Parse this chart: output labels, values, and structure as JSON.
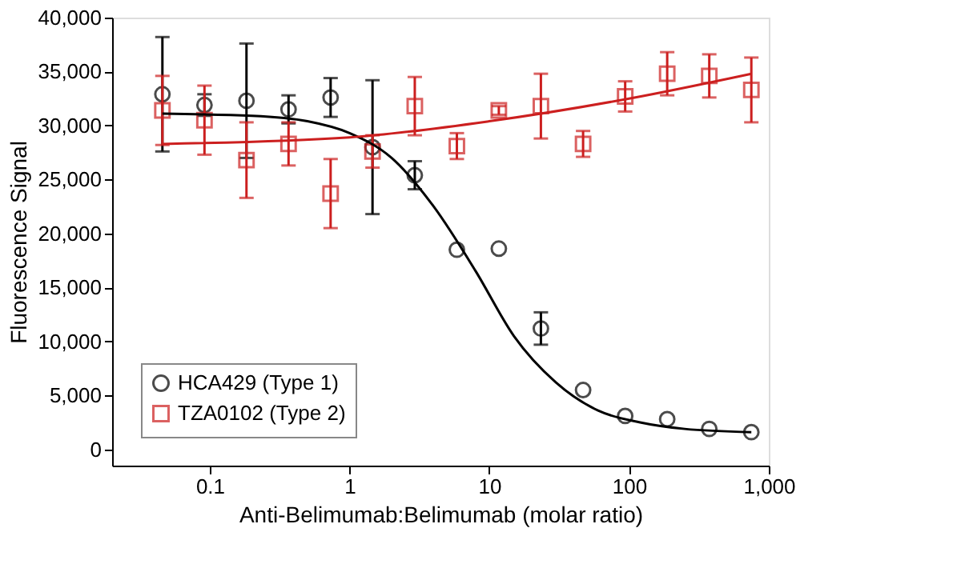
{
  "chart_data": {
    "type": "scatter",
    "xlabel": "Anti-Belimumab:Belimumab (molar ratio)",
    "ylabel": "Fluorescence Signal",
    "log": "x",
    "grid": false,
    "legend": "bottom left",
    "xlim": [
      0.02,
      1000
    ],
    "xticks": [
      0.1,
      1,
      10,
      100,
      {
        "value": 1000,
        "label": "1,000"
      }
    ],
    "ylim": [
      -1500,
      40000
    ],
    "yticks": [
      0,
      {
        "value": 5000,
        "label": "5,000"
      },
      {
        "value": 10000,
        "label": "10,000"
      },
      {
        "value": 15000,
        "label": "15,000"
      },
      {
        "value": 20000,
        "label": "20,000"
      },
      {
        "value": 25000,
        "label": "25,000"
      },
      {
        "value": 30000,
        "label": "30,000"
      },
      {
        "value": 35000,
        "label": "35,000"
      },
      {
        "value": 40000,
        "label": "40,000"
      }
    ],
    "x": [
      0.0458,
      0.0916,
      0.183,
      0.366,
      0.732,
      1.46,
      2.93,
      5.86,
      11.7,
      23.4,
      46.9,
      93.8,
      187.5,
      375,
      750
    ],
    "series": [
      {
        "name": "HCA429 (Type 1)",
        "type": "scatter",
        "marker": "circle",
        "color": "#000000",
        "values": [
          32900,
          31900,
          32300,
          31500,
          32600,
          28000,
          25400,
          18500,
          18600,
          11200,
          5500,
          3100,
          2800,
          1900,
          1600
        ],
        "errors": [
          5300,
          1000,
          5300,
          1300,
          1800,
          6200,
          1300,
          null,
          null,
          1500,
          null,
          null,
          null,
          null,
          null
        ]
      },
      {
        "name": "TZA0102 (Type 2)",
        "type": "scatter",
        "marker": "square",
        "color": "#cc1f1f",
        "values": [
          31400,
          30500,
          26800,
          28300,
          23700,
          27600,
          31800,
          28100,
          31400,
          31800,
          28300,
          32700,
          34800,
          34600,
          33300
        ],
        "errors": [
          3200,
          3200,
          3500,
          2000,
          3200,
          1500,
          2700,
          1200,
          400,
          3000,
          1200,
          1400,
          2000,
          2000,
          3000
        ]
      },
      {
        "type": "line",
        "color": "#000000",
        "x": [
          0.0458,
          0.2,
          0.5,
          1,
          2,
          4,
          8,
          15,
          30,
          60,
          120,
          250,
          750
        ],
        "values": [
          31100,
          30900,
          30400,
          29300,
          27000,
          22500,
          16500,
          10500,
          6200,
          3600,
          2500,
          1900,
          1600
        ]
      },
      {
        "type": "line",
        "color": "#cc1f1f",
        "x": [
          0.0458,
          1,
          10,
          100,
          750
        ],
        "values": [
          28300,
          28900,
          30400,
          32500,
          34800
        ]
      }
    ]
  }
}
